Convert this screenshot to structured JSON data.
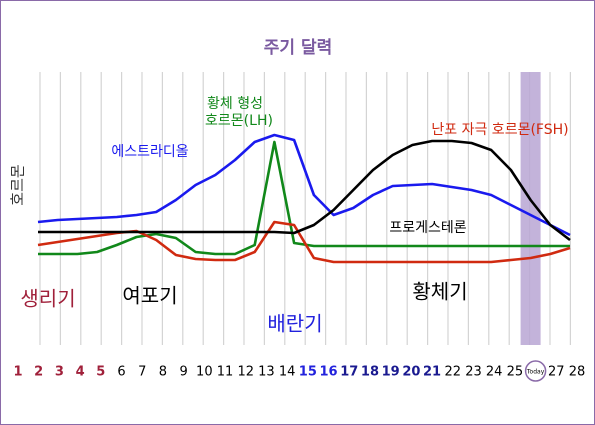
{
  "chart_data": {
    "type": "line",
    "title": "주기 달력",
    "y_label": "호르몬",
    "categories": [
      "1",
      "2",
      "3",
      "4",
      "5",
      "6",
      "7",
      "8",
      "9",
      "10",
      "11",
      "12",
      "13",
      "14",
      "15",
      "16",
      "17",
      "18",
      "19",
      "20",
      "21",
      "22",
      "23",
      "24",
      "25",
      "Today",
      "27",
      "28"
    ],
    "category_colors": [
      "#a0203a",
      "#a0203a",
      "#a0203a",
      "#a0203a",
      "#a0203a",
      "#000",
      "#000",
      "#000",
      "#000",
      "#000",
      "#000",
      "#000",
      "#000",
      "#000",
      "#2222dd",
      "#2222dd",
      "#1a1a90",
      "#1a1a90",
      "#1a1a90",
      "#1a1a90",
      "#1a1a90",
      "#000",
      "#000",
      "#000",
      "#000",
      "#000",
      "#000",
      "#000"
    ],
    "highlight": 26,
    "ylim": [
      0,
      230
    ],
    "series": [
      {
        "name": "에스트라디올",
        "color": "#1a1aee",
        "values": [
          78,
          80,
          81,
          82,
          83,
          85,
          88,
          100,
          115,
          125,
          140,
          158,
          165,
          160,
          105,
          85,
          92,
          105,
          114,
          115,
          116,
          113,
          110,
          105,
          95,
          85,
          75,
          65
        ]
      },
      {
        "name_lines": [
          "황체 형성",
          "호르몬(LH)"
        ],
        "color": "#11881a",
        "values": [
          46,
          46,
          46,
          48,
          55,
          63,
          66,
          62,
          48,
          46,
          46,
          55,
          158,
          57,
          54,
          54,
          54,
          54,
          54,
          54,
          54,
          54,
          54,
          54,
          54,
          54,
          54,
          54
        ]
      },
      {
        "name": "난포 자극 호르몬(FSH)",
        "color": "#d02a10",
        "values": [
          55,
          58,
          61,
          64,
          67,
          69,
          60,
          45,
          41,
          40,
          40,
          48,
          78,
          75,
          42,
          38,
          38,
          38,
          38,
          38,
          38,
          38,
          38,
          38,
          40,
          42,
          46,
          52
        ]
      },
      {
        "name": "프로게스테론",
        "color": "#000000",
        "values": [
          68,
          68,
          68,
          68,
          68,
          68,
          68,
          68,
          68,
          68,
          68,
          68,
          68,
          67,
          75,
          90,
          110,
          130,
          145,
          155,
          159,
          159,
          157,
          150,
          130,
          100,
          75,
          60
        ]
      }
    ],
    "phases": [
      {
        "label": "생리기",
        "color": "#a0203a"
      },
      {
        "label": "여포기",
        "color": "#000000"
      },
      {
        "label": "배란기",
        "color": "#2222dd"
      },
      {
        "label": "황체기",
        "color": "#000000"
      }
    ]
  }
}
